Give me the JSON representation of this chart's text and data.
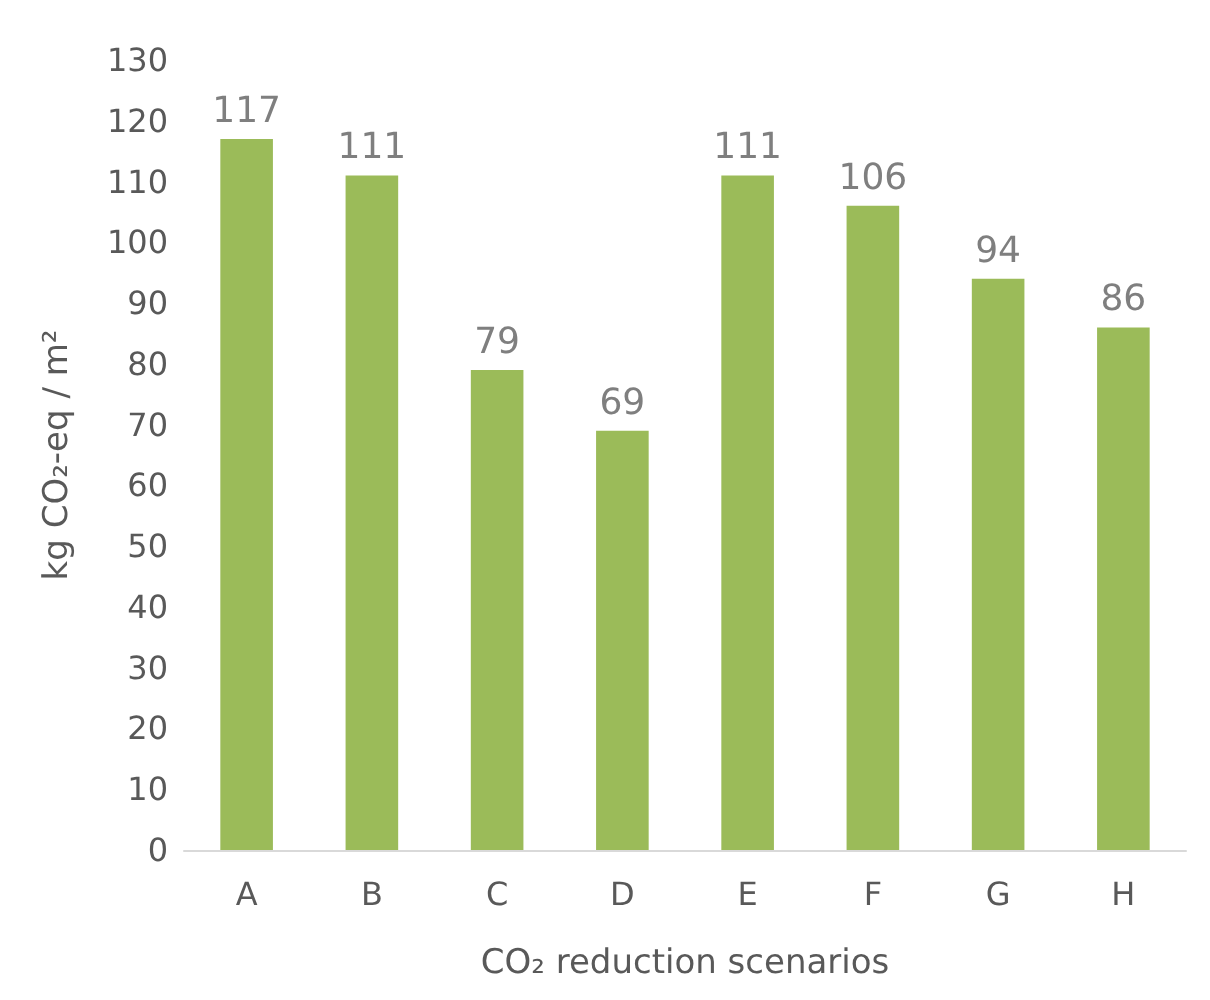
{
  "chart_data": {
    "type": "bar",
    "xlabel": "CO₂ reduction scenarios",
    "ylabel": "kg CO₂-eq / m²",
    "categories": [
      "A",
      "B",
      "C",
      "D",
      "E",
      "F",
      "G",
      "H"
    ],
    "values": [
      117,
      111,
      79,
      69,
      111,
      106,
      94,
      86
    ],
    "color": "#9bbb59",
    "ylim": [
      0,
      130
    ],
    "yticks": [
      0,
      10,
      20,
      30,
      40,
      50,
      60,
      70,
      80,
      90,
      100,
      110,
      120,
      130
    ],
    "grid": false,
    "data_labels": true
  }
}
